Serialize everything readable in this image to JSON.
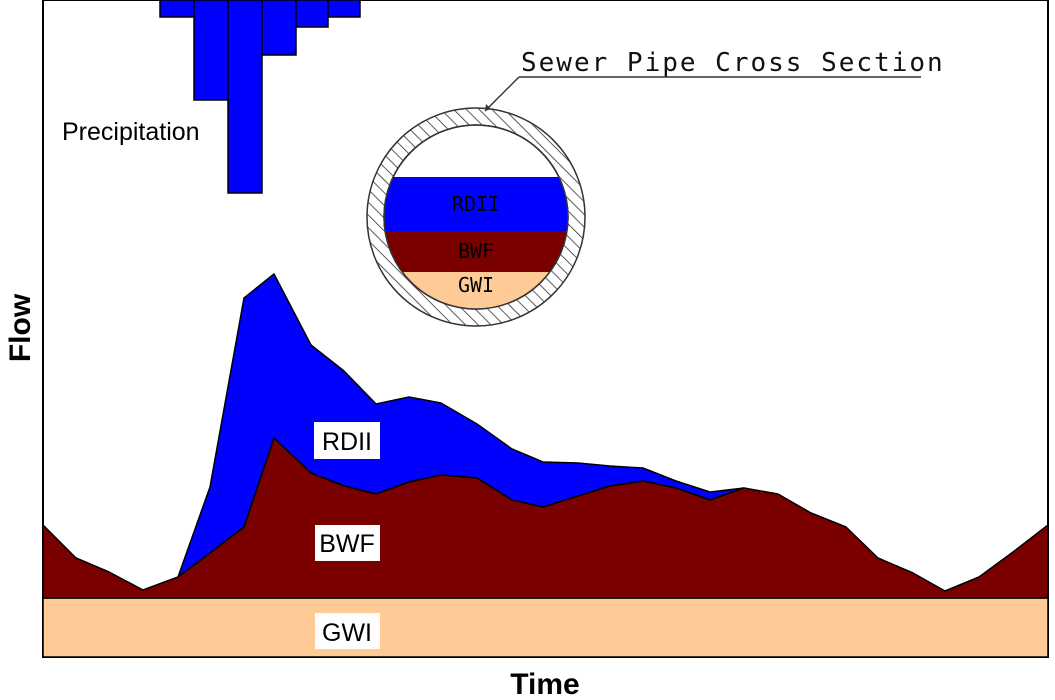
{
  "axes": {
    "x_title": "Time",
    "y_title": "Flow"
  },
  "colors": {
    "gwi": "#FECB96",
    "bwf": "#7A0000",
    "rdii": "#0000FF",
    "outline": "#000000"
  },
  "labels": {
    "precipitation": "Precipitation",
    "rdii": "RDII",
    "bwf": "BWF",
    "gwi": "GWI"
  },
  "pipe": {
    "title": "Sewer Pipe Cross Section",
    "layers": [
      "RDII",
      "BWF",
      "GWI"
    ]
  }
}
